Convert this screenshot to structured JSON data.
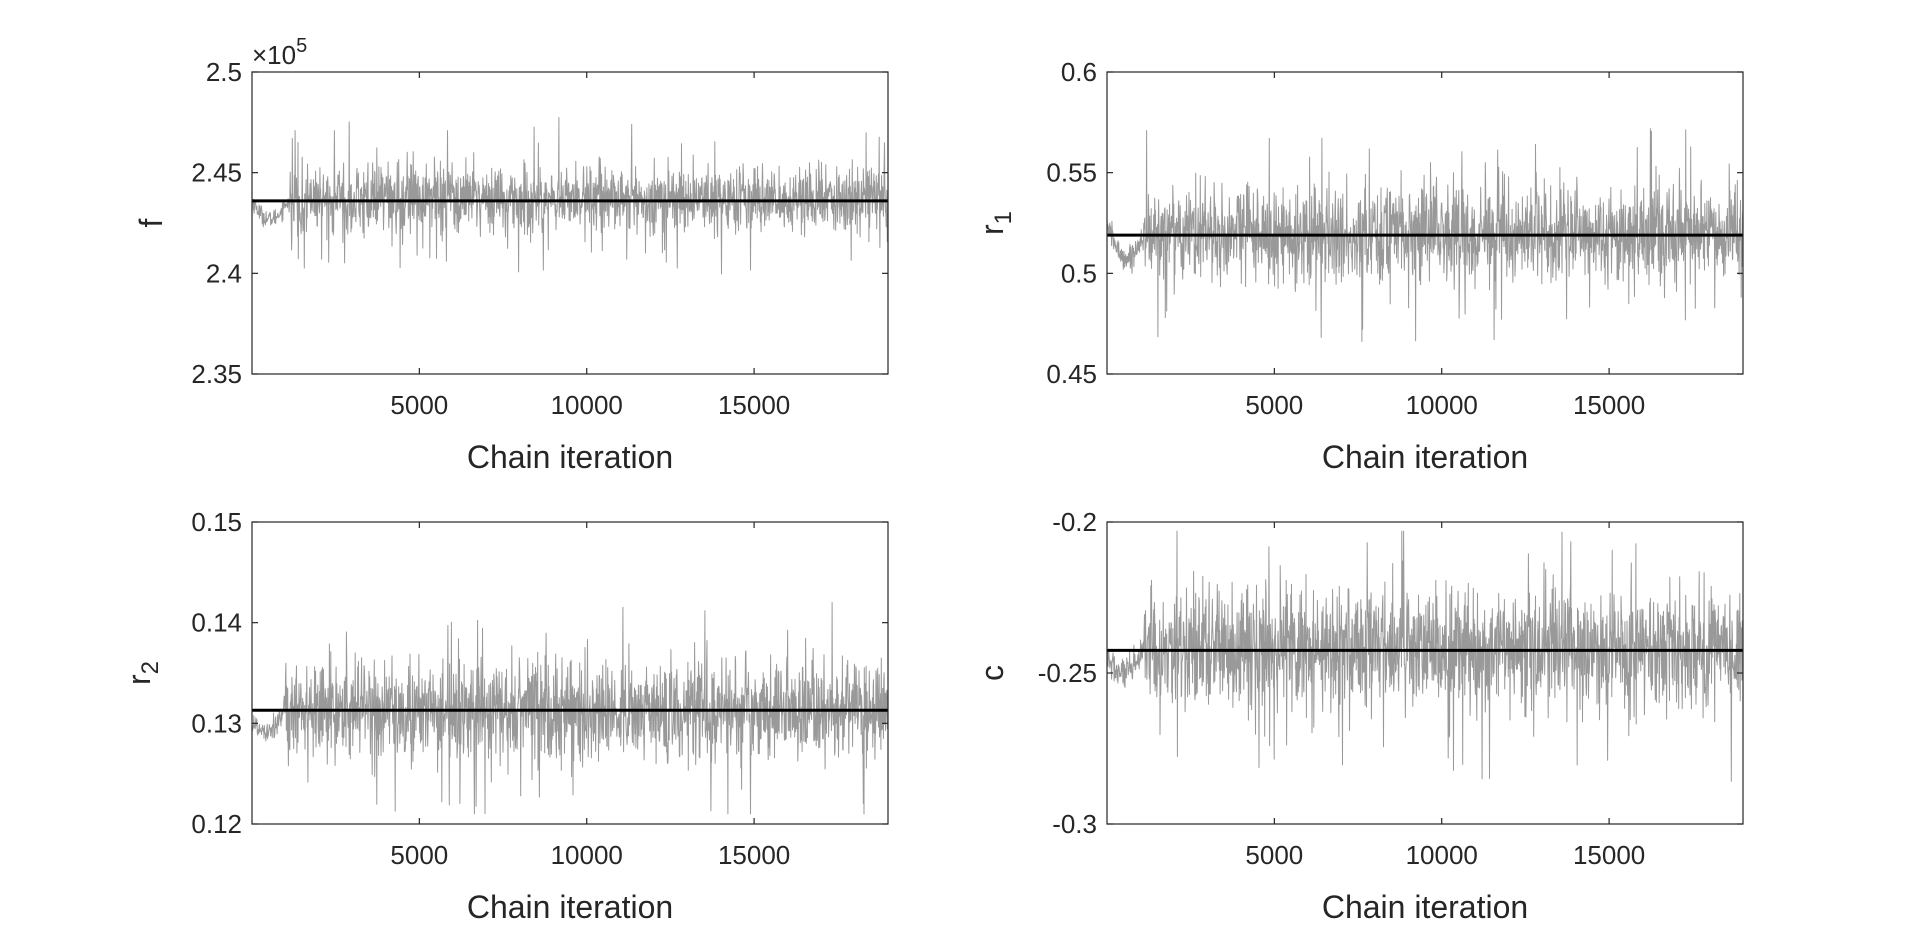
{
  "chart_data": [
    {
      "type": "line",
      "xlabel": "Chain iteration",
      "ylabel": "f",
      "ylabel_subscript": "",
      "xlim": [
        1,
        19000
      ],
      "ylim": [
        2.35,
        2.5
      ],
      "exponent_label": "×10",
      "exponent_power": "5",
      "x_ticks": [
        5000,
        10000,
        15000
      ],
      "x_tick_labels": [
        "5000",
        "10000",
        "15000"
      ],
      "y_ticks": [
        2.35,
        2.4,
        2.45,
        2.5
      ],
      "y_tick_labels": [
        "2.35",
        "2.4",
        "2.45",
        "2.5"
      ],
      "grid": false,
      "series": [
        {
          "kind": "chain",
          "color": "#999999",
          "burn_in_end": 1100,
          "burn_in_start_value": 2.436,
          "burn_in_min": 2.42,
          "mean": 2.437,
          "sd": 0.0085,
          "min": 2.387,
          "max": 2.478
        },
        {
          "kind": "estimate",
          "color": "#000000",
          "value": 2.436
        }
      ]
    },
    {
      "type": "line",
      "xlabel": "Chain iteration",
      "ylabel": "r",
      "ylabel_subscript": "1",
      "xlim": [
        1,
        19000
      ],
      "ylim": [
        0.45,
        0.6
      ],
      "x_ticks": [
        5000,
        10000,
        15000
      ],
      "x_tick_labels": [
        "5000",
        "10000",
        "15000"
      ],
      "y_ticks": [
        0.45,
        0.5,
        0.55,
        0.6
      ],
      "y_tick_labels": [
        "0.45",
        "0.5",
        "0.55",
        "0.6"
      ],
      "grid": false,
      "series": [
        {
          "kind": "chain",
          "color": "#999999",
          "burn_in_end": 1100,
          "burn_in_start_value": 0.525,
          "burn_in_min": 0.5,
          "mean": 0.52,
          "sd": 0.012,
          "min": 0.463,
          "max": 0.573
        },
        {
          "kind": "estimate",
          "color": "#000000",
          "value": 0.519
        }
      ]
    },
    {
      "type": "line",
      "xlabel": "Chain iteration",
      "ylabel": "r",
      "ylabel_subscript": "2",
      "xlim": [
        1,
        19000
      ],
      "ylim": [
        0.12,
        0.15
      ],
      "x_ticks": [
        5000,
        10000,
        15000
      ],
      "x_tick_labels": [
        "5000",
        "10000",
        "15000"
      ],
      "y_ticks": [
        0.12,
        0.13,
        0.14,
        0.15
      ],
      "y_tick_labels": [
        "0.12",
        "0.13",
        "0.14",
        "0.15"
      ],
      "grid": false,
      "series": [
        {
          "kind": "chain",
          "color": "#999999",
          "burn_in_end": 1000,
          "burn_in_start_value": 0.13,
          "burn_in_min": 0.128,
          "mean": 0.1313,
          "sd": 0.0025,
          "min": 0.121,
          "max": 0.142
        },
        {
          "kind": "estimate",
          "color": "#000000",
          "value": 0.1313
        }
      ]
    },
    {
      "type": "line",
      "xlabel": "Chain iteration",
      "ylabel": "c",
      "ylabel_subscript": "",
      "xlim": [
        1,
        19000
      ],
      "ylim": [
        -0.3,
        -0.2
      ],
      "x_ticks": [
        5000,
        10000,
        15000
      ],
      "x_tick_labels": [
        "5000",
        "10000",
        "15000"
      ],
      "y_ticks": [
        -0.3,
        -0.25,
        -0.2
      ],
      "y_tick_labels": [
        "-0.3",
        "-0.25",
        "-0.2"
      ],
      "grid": false,
      "series": [
        {
          "kind": "chain",
          "color": "#999999",
          "burn_in_end": 1100,
          "burn_in_start_value": -0.245,
          "burn_in_min": -0.256,
          "mean": -0.2425,
          "sd": 0.0105,
          "min": -0.288,
          "max": -0.203
        },
        {
          "kind": "estimate",
          "color": "#000000",
          "value": -0.2425
        }
      ]
    }
  ]
}
